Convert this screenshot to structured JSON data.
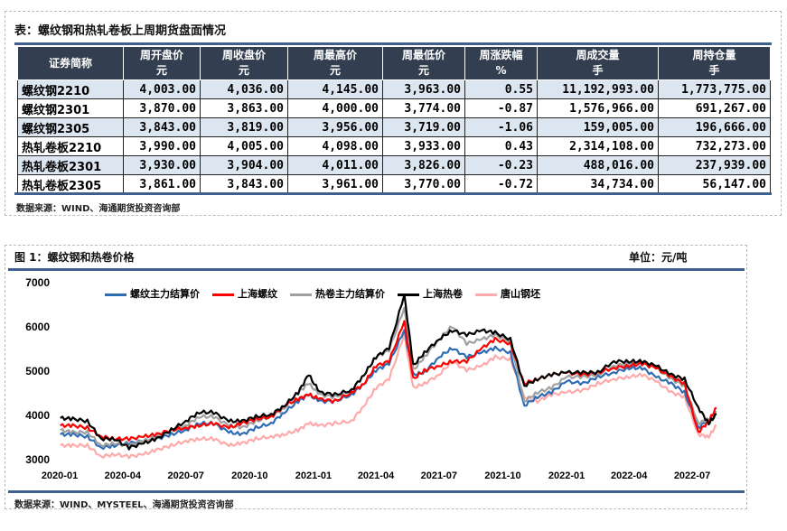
{
  "table_section": {
    "title": "表：螺纹钢和热轧卷板上周期货盘面情况",
    "headers": [
      {
        "label": "证券简称",
        "unit": ""
      },
      {
        "label": "周开盘价",
        "unit": "元"
      },
      {
        "label": "周收盘价",
        "unit": "元"
      },
      {
        "label": "周最高价",
        "unit": "元"
      },
      {
        "label": "周最低价",
        "unit": "元"
      },
      {
        "label": "周涨跌幅",
        "unit": "%"
      },
      {
        "label": "周成交量",
        "unit": "手"
      },
      {
        "label": "周持仓量",
        "unit": "手"
      }
    ],
    "rows": [
      [
        "螺纹钢2210",
        "4,003.00",
        "4,036.00",
        "4,145.00",
        "3,963.00",
        "0.55",
        "11,192,993.00",
        "1,773,775.00"
      ],
      [
        "螺纹钢2301",
        "3,870.00",
        "3,863.00",
        "4,000.00",
        "3,774.00",
        "-0.87",
        "1,576,966.00",
        "691,267.00"
      ],
      [
        "螺纹钢2305",
        "3,843.00",
        "3,819.00",
        "3,956.00",
        "3,719.00",
        "-1.06",
        "159,005.00",
        "196,666.00"
      ],
      [
        "热轧卷板2210",
        "3,990.00",
        "4,005.00",
        "4,098.00",
        "3,933.00",
        "0.43",
        "2,314,108.00",
        "732,273.00"
      ],
      [
        "热轧卷板2301",
        "3,930.00",
        "3,904.00",
        "4,011.00",
        "3,826.00",
        "-0.23",
        "488,016.00",
        "237,939.00"
      ],
      [
        "热轧卷板2305",
        "3,861.00",
        "3,843.00",
        "3,961.00",
        "3,770.00",
        "-0.72",
        "34,734.00",
        "56,147.00"
      ]
    ],
    "source": "数据来源：WIND、海通期货投资咨询部"
  },
  "chart_section": {
    "title": "图 1：螺纹钢和热卷价格",
    "unit": "单位：元/吨",
    "source": "数据来源：WIND、MYSTEEL、海通期货投资咨询部"
  },
  "chart_data": {
    "type": "line",
    "ylim": [
      3000,
      7000
    ],
    "yticks": [
      "3000",
      "4000",
      "5000",
      "6000",
      "7000"
    ],
    "xticks": [
      "2020-01",
      "2020-04",
      "2020-07",
      "2020-10",
      "2021-01",
      "2021-04",
      "2021-07",
      "2021-10",
      "2022-01",
      "2022-04",
      "2022-07"
    ],
    "grid": false,
    "legend_position": "top",
    "x": [
      "2020-01-02",
      "2020-01-20",
      "2020-02-10",
      "2020-03-01",
      "2020-03-20",
      "2020-04-10",
      "2020-05-01",
      "2020-05-20",
      "2020-06-10",
      "2020-07-01",
      "2020-07-20",
      "2020-08-10",
      "2020-09-01",
      "2020-09-20",
      "2020-10-10",
      "2020-11-01",
      "2020-11-20",
      "2020-12-10",
      "2020-12-25",
      "2021-01-10",
      "2021-02-01",
      "2021-02-25",
      "2021-03-15",
      "2021-04-01",
      "2021-04-20",
      "2021-05-12",
      "2021-05-25",
      "2021-06-10",
      "2021-07-01",
      "2021-07-20",
      "2021-08-10",
      "2021-09-01",
      "2021-09-20",
      "2021-10-12",
      "2021-11-01",
      "2021-11-20",
      "2021-12-10",
      "2022-01-01",
      "2022-01-25",
      "2022-02-15",
      "2022-03-10",
      "2022-04-01",
      "2022-04-20",
      "2022-05-10",
      "2022-06-01",
      "2022-06-20",
      "2022-07-10",
      "2022-07-25",
      "2022-08-05"
    ],
    "series": [
      {
        "name": "唐山钢坯",
        "color": "#ffaaaa",
        "values": [
          3300,
          3300,
          3300,
          3050,
          3100,
          3050,
          3100,
          3200,
          3300,
          3400,
          3450,
          3450,
          3300,
          3350,
          3450,
          3500,
          3550,
          3650,
          3800,
          3750,
          3800,
          3850,
          4200,
          4600,
          4800,
          5800,
          4600,
          4700,
          4900,
          5200,
          5000,
          5100,
          5300,
          5250,
          4400,
          4300,
          4450,
          4500,
          4550,
          4700,
          4800,
          4850,
          4900,
          4750,
          4500,
          4400,
          3550,
          3500,
          3750
        ]
      },
      {
        "name": "螺纹主力结算价",
        "color": "#2e6db4",
        "values": [
          3550,
          3550,
          3500,
          3250,
          3300,
          3350,
          3400,
          3450,
          3550,
          3650,
          3800,
          3800,
          3600,
          3550,
          3700,
          3800,
          4050,
          4300,
          4450,
          4300,
          4300,
          4450,
          4700,
          5000,
          5150,
          5900,
          4900,
          4950,
          5300,
          5500,
          5300,
          5400,
          5500,
          5400,
          4200,
          4400,
          4500,
          4750,
          4700,
          4850,
          4950,
          5050,
          5050,
          4850,
          4700,
          4500,
          3700,
          3900,
          4000
        ]
      },
      {
        "name": "热卷主力结算价",
        "color": "#a0a0a0",
        "values": [
          3650,
          3600,
          3600,
          3300,
          3350,
          3300,
          3400,
          3500,
          3650,
          3750,
          3950,
          3950,
          3750,
          3700,
          3850,
          3950,
          4150,
          4500,
          4700,
          4450,
          4400,
          4550,
          4900,
          5300,
          5450,
          6400,
          5000,
          5300,
          5700,
          6000,
          5600,
          5700,
          5800,
          5650,
          4300,
          4500,
          4600,
          4850,
          4850,
          4900,
          5100,
          5150,
          5200,
          5050,
          4800,
          4650,
          3800,
          3900,
          4050
        ]
      },
      {
        "name": "上海螺纹",
        "color": "#ff0000",
        "values": [
          3750,
          3750,
          3700,
          3500,
          3450,
          3450,
          3500,
          3550,
          3650,
          3700,
          3750,
          3800,
          3700,
          3800,
          3900,
          3950,
          4200,
          4350,
          4450,
          4350,
          4300,
          4500,
          4700,
          5100,
          5200,
          6100,
          4800,
          5000,
          5100,
          5200,
          5200,
          5500,
          5700,
          5600,
          4700,
          4800,
          4900,
          4950,
          4900,
          4950,
          5050,
          5100,
          5150,
          5050,
          4850,
          4700,
          3600,
          3850,
          4150
        ]
      },
      {
        "name": "上海热卷",
        "color": "#000000",
        "values": [
          3920,
          3900,
          3850,
          3450,
          3450,
          3250,
          3350,
          3450,
          3650,
          3850,
          4050,
          4050,
          3850,
          3850,
          3950,
          4000,
          4200,
          4500,
          4900,
          4500,
          4450,
          4550,
          4900,
          5300,
          5500,
          6700,
          5100,
          5400,
          5700,
          5900,
          5800,
          5900,
          5850,
          5700,
          4650,
          4800,
          4900,
          4950,
          4950,
          4950,
          5200,
          5200,
          5200,
          5100,
          4900,
          4800,
          4150,
          3800,
          4000
        ]
      }
    ],
    "legend_order": [
      1,
      3,
      2,
      4,
      0
    ]
  }
}
